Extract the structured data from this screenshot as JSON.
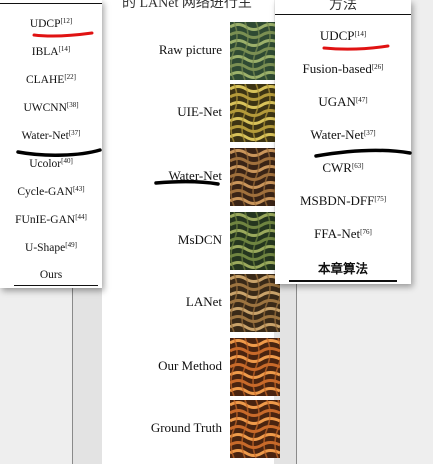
{
  "center": {
    "header": "的 LANet 网络进行主",
    "rows": [
      {
        "label": "Raw picture",
        "tone": "raw"
      },
      {
        "label": "UIE-Net",
        "tone": "yellow"
      },
      {
        "label": "Water-Net",
        "tone": "copper"
      },
      {
        "label": "MsDCN",
        "tone": "green"
      },
      {
        "label": "LANet",
        "tone": "bronze"
      },
      {
        "label": "Our Method",
        "tone": "orange"
      },
      {
        "label": "Ground Truth",
        "tone": "orange"
      }
    ]
  },
  "left_table": {
    "items": [
      {
        "name": "UDCP",
        "ref": "[12]"
      },
      {
        "name": "IBLA",
        "ref": "[14]"
      },
      {
        "name": "CLAHE",
        "ref": "[22]"
      },
      {
        "name": "UWCNN",
        "ref": "[38]"
      },
      {
        "name": "Water-Net",
        "ref": "[37]"
      },
      {
        "name": "Ucolor",
        "ref": "[40]"
      },
      {
        "name": "Cycle-GAN",
        "ref": "[43]"
      },
      {
        "name": "FUnIE-GAN",
        "ref": "[44]"
      },
      {
        "name": "U-Shape",
        "ref": "[49]"
      },
      {
        "name": "Ours",
        "ref": ""
      }
    ]
  },
  "right_table": {
    "title": "方法",
    "items": [
      {
        "name": "UDCP",
        "ref": "[14]"
      },
      {
        "name": "Fusion-based",
        "ref": "[26]"
      },
      {
        "name": "UGAN",
        "ref": "[47]"
      },
      {
        "name": "Water-Net",
        "ref": "[37]"
      },
      {
        "name": "CWR",
        "ref": "[63]"
      },
      {
        "name": "MSBDN-DFF",
        "ref": "[75]"
      },
      {
        "name": "FFA-Net",
        "ref": "[76]"
      }
    ],
    "final": "本章算法"
  },
  "colors": {
    "red_mark": "#e01212",
    "black_mark": "#000000"
  }
}
